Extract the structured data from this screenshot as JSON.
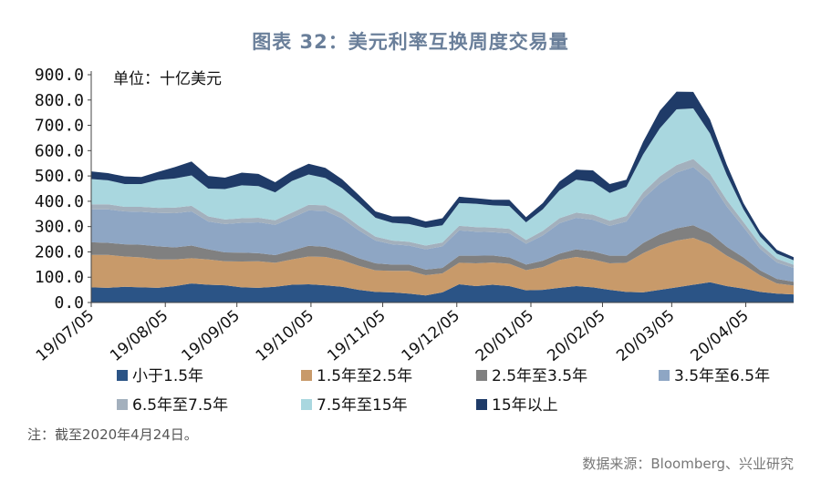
{
  "page": {
    "title": "图表 32：美元利率互换周度交易量",
    "note": "注：截至2020年4月24日。",
    "source": "数据来源：Bloomberg、兴业研究"
  },
  "chart_data": {
    "type": "area",
    "stacked": true,
    "unit_label": "单位：十亿美元",
    "ylim": [
      0,
      900
    ],
    "yticks": [
      0,
      100,
      200,
      300,
      400,
      500,
      600,
      700,
      800,
      900
    ],
    "ytick_labels": [
      "0.0",
      "100.0",
      "200.0",
      "300.0",
      "400.0",
      "500.0",
      "600.0",
      "700.0",
      "800.0",
      "900.0"
    ],
    "x_tick_labels": [
      "19/07/05",
      "19/08/05",
      "19/09/05",
      "19/10/05",
      "19/11/05",
      "19/12/05",
      "20/01/05",
      "20/02/05",
      "20/03/05",
      "20/04/05"
    ],
    "x_tick_positions": [
      0,
      4.43,
      8.71,
      13.14,
      17.43,
      21.86,
      26.29,
      30.57,
      34.71,
      39.14
    ],
    "x_count": 43,
    "legend_position": "bottom",
    "series": [
      {
        "name": "小于1.5年",
        "color": "#2b5486",
        "values": [
          60,
          58,
          62,
          60,
          58,
          65,
          75,
          70,
          68,
          60,
          58,
          62,
          70,
          72,
          68,
          62,
          50,
          42,
          40,
          35,
          28,
          40,
          72,
          65,
          70,
          65,
          48,
          50,
          58,
          65,
          60,
          50,
          42,
          40,
          50,
          60,
          70,
          80,
          65,
          55,
          42,
          35,
          32
        ]
      },
      {
        "name": "1.5年至2.5年",
        "color": "#c89a6a",
        "values": [
          128,
          130,
          120,
          118,
          112,
          105,
          100,
          100,
          95,
          102,
          105,
          95,
          100,
          110,
          112,
          105,
          95,
          85,
          85,
          90,
          80,
          75,
          85,
          90,
          88,
          88,
          80,
          90,
          110,
          115,
          110,
          105,
          115,
          155,
          175,
          185,
          185,
          150,
          120,
          95,
          65,
          40,
          35
        ]
      },
      {
        "name": "2.5年至3.5年",
        "color": "#808080",
        "values": [
          50,
          48,
          48,
          50,
          52,
          48,
          50,
          40,
          35,
          35,
          32,
          30,
          35,
          42,
          40,
          35,
          30,
          28,
          25,
          25,
          22,
          22,
          28,
          30,
          28,
          25,
          22,
          25,
          25,
          30,
          32,
          30,
          28,
          40,
          45,
          48,
          50,
          45,
          35,
          28,
          20,
          18,
          15
        ]
      },
      {
        "name": "3.5年至6.5年",
        "color": "#8ea6c4",
        "values": [
          130,
          132,
          130,
          130,
          132,
          135,
          135,
          110,
          112,
          118,
          122,
          120,
          130,
          140,
          142,
          130,
          110,
          90,
          80,
          75,
          80,
          85,
          100,
          95,
          92,
          95,
          82,
          100,
          120,
          125,
          125,
          118,
          135,
          175,
          200,
          220,
          230,
          205,
          160,
          120,
          85,
          65,
          55
        ]
      },
      {
        "name": "6.5年至7.5年",
        "color": "#a3b0bd",
        "values": [
          20,
          20,
          18,
          20,
          20,
          22,
          22,
          20,
          18,
          18,
          18,
          18,
          20,
          22,
          22,
          20,
          18,
          15,
          15,
          15,
          15,
          15,
          18,
          18,
          18,
          18,
          15,
          18,
          20,
          20,
          20,
          20,
          22,
          25,
          28,
          30,
          32,
          28,
          25,
          20,
          18,
          15,
          12
        ]
      },
      {
        "name": "7.5年至15年",
        "color": "#a9d7df",
        "values": [
          100,
          95,
          90,
          90,
          110,
          115,
          120,
          110,
          120,
          130,
          125,
          110,
          125,
          120,
          108,
          100,
          92,
          75,
          70,
          70,
          70,
          68,
          90,
          92,
          88,
          90,
          70,
          85,
          110,
          130,
          130,
          110,
          115,
          150,
          190,
          220,
          200,
          160,
          100,
          50,
          30,
          20,
          18
        ]
      },
      {
        "name": "15年以上",
        "color": "#1f3b68",
        "values": [
          30,
          28,
          30,
          28,
          32,
          45,
          55,
          50,
          45,
          50,
          48,
          40,
          38,
          42,
          40,
          35,
          30,
          25,
          25,
          30,
          25,
          28,
          25,
          22,
          22,
          25,
          20,
          25,
          35,
          40,
          45,
          35,
          28,
          50,
          70,
          70,
          65,
          55,
          40,
          25,
          20,
          15,
          12
        ]
      }
    ]
  }
}
